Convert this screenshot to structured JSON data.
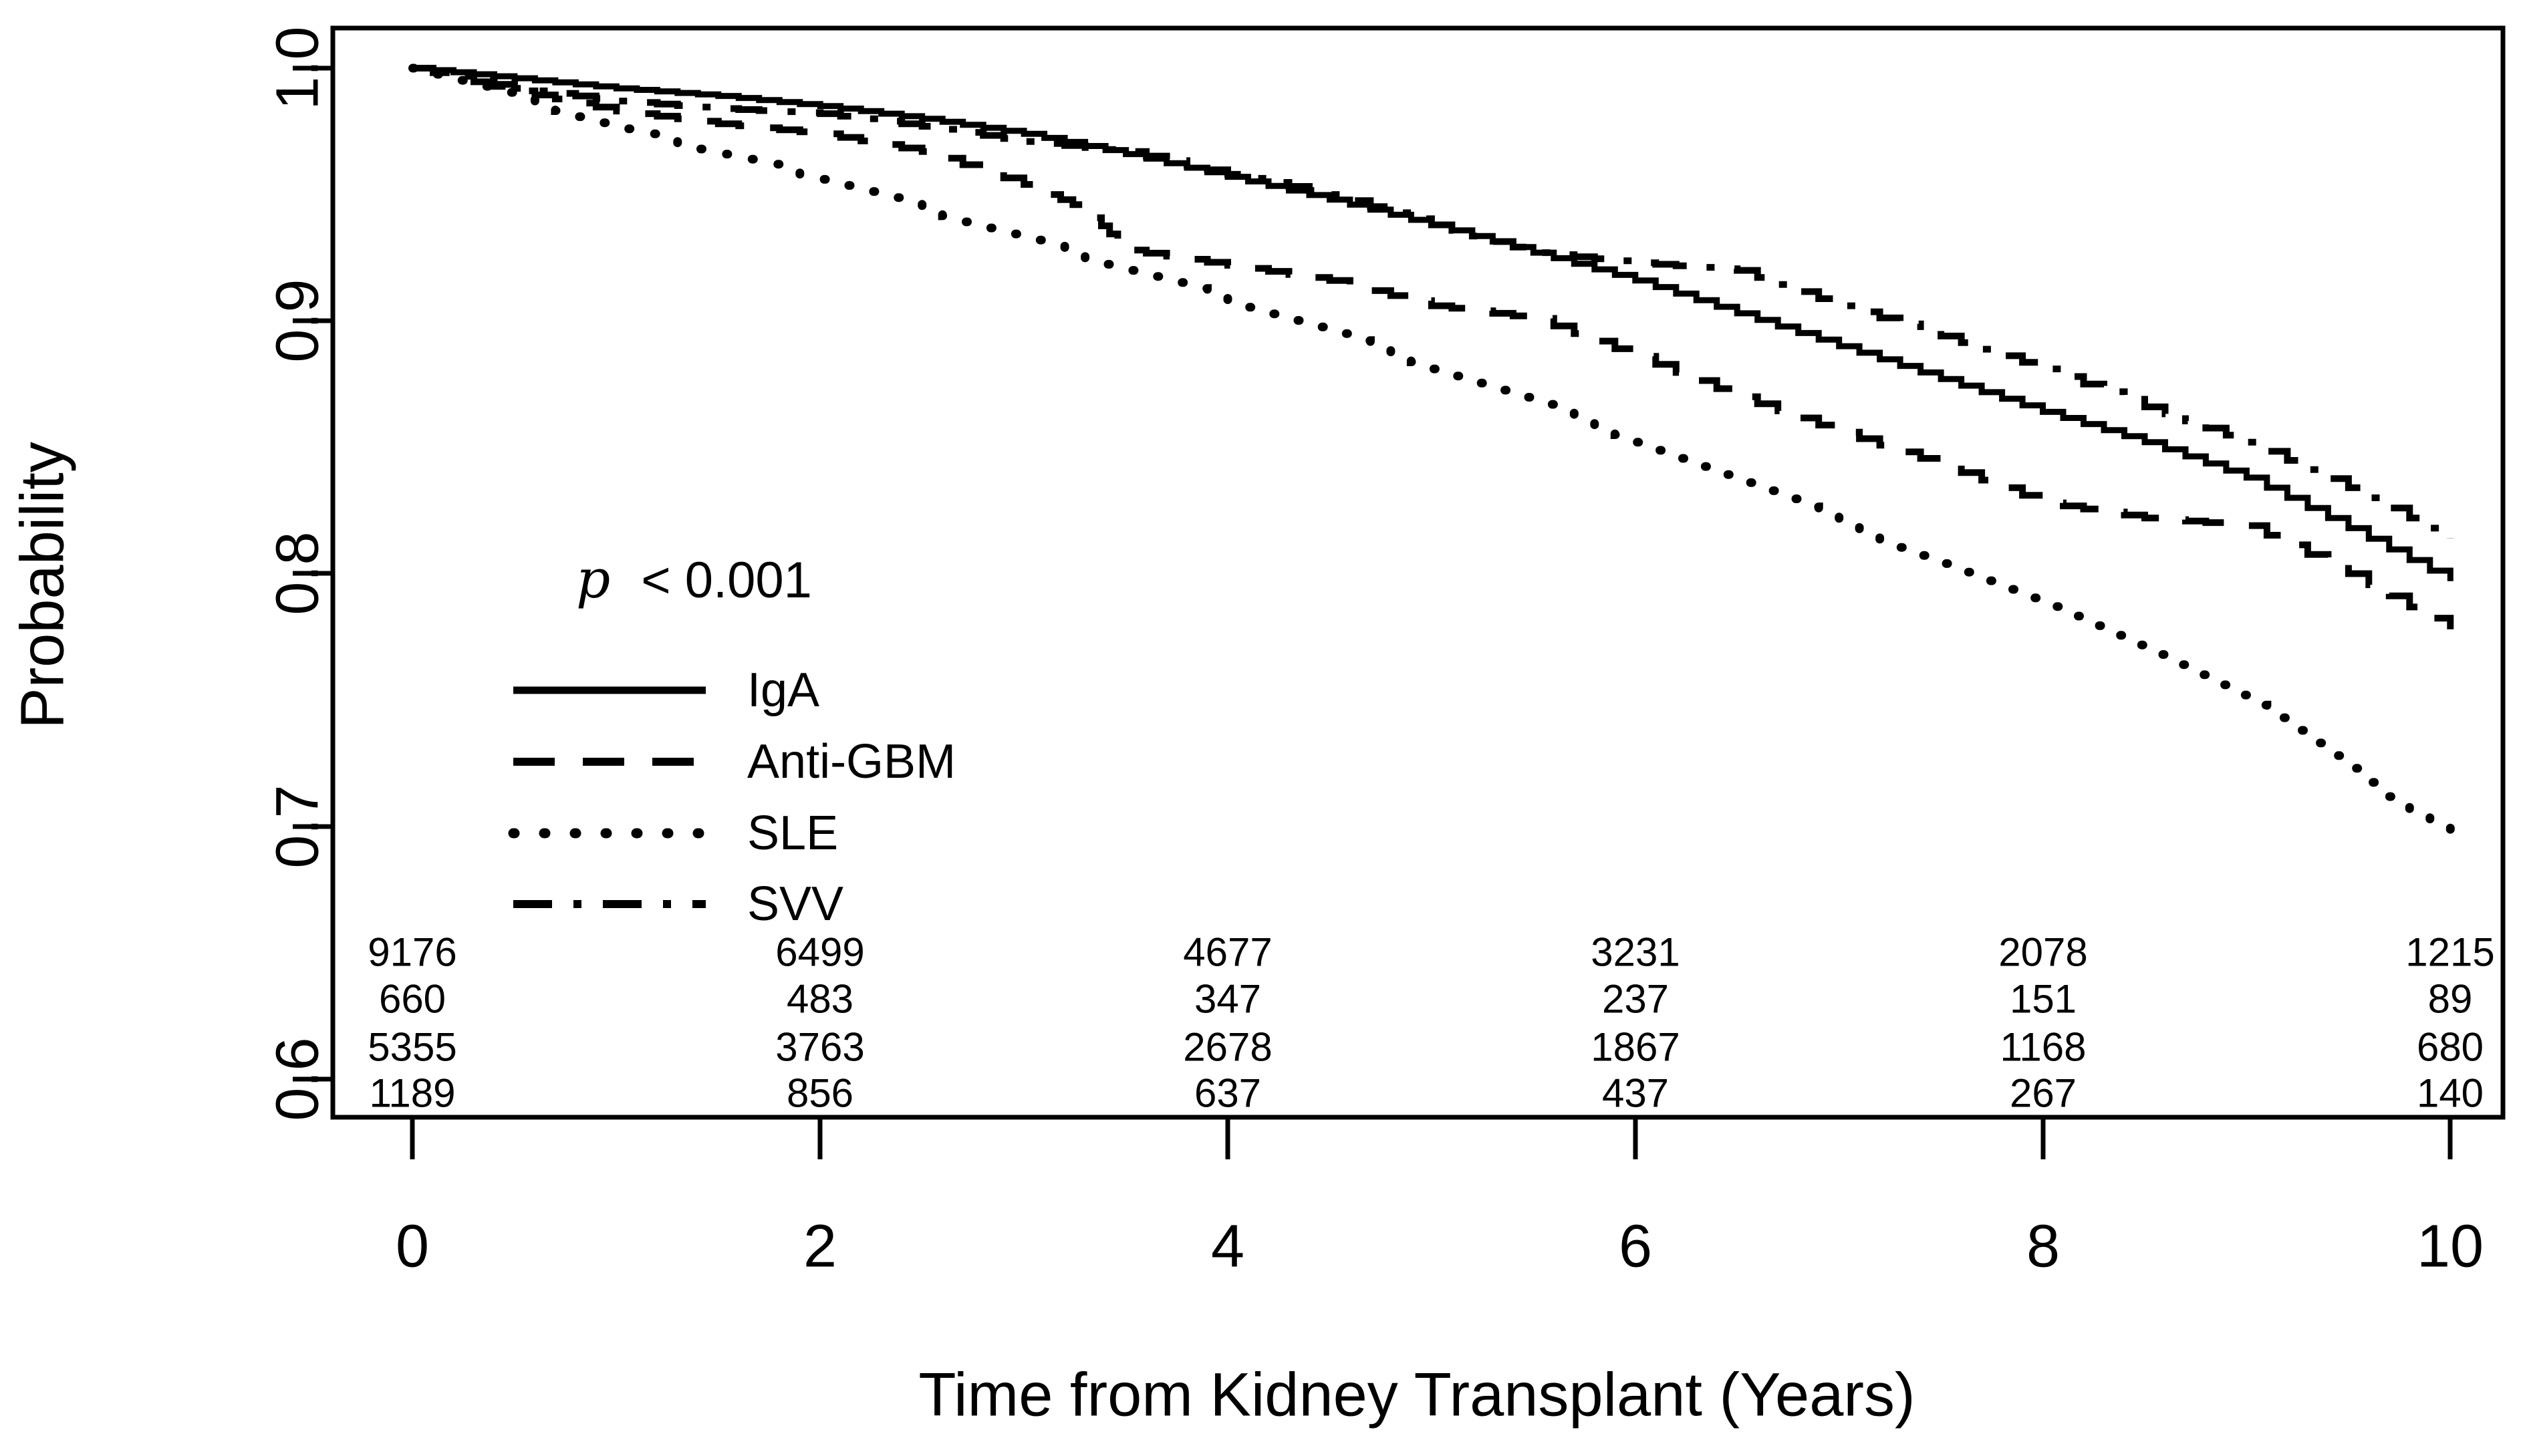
{
  "page": {
    "background": "#ffffff",
    "foreground": "#000000"
  },
  "chart_data": {
    "type": "line",
    "subtype": "kaplan-meier-survival",
    "title": "",
    "xlabel": "Time from Kidney Transplant (Years)",
    "ylabel": "Probability",
    "x_ticks": [
      "0",
      "2",
      "4",
      "6",
      "8",
      "10"
    ],
    "y_ticks": [
      "1.0",
      "0.9",
      "0.8",
      "0.7",
      "0.6"
    ],
    "xlim": [
      0,
      10
    ],
    "ylim": [
      0.585,
      1.0
    ],
    "grid": false,
    "legend_position": "inside-left-middle",
    "annotation": {
      "p_symbol": "p",
      "p_rest": "< 0.001",
      "full_text": "p < 0.001"
    },
    "series": [
      {
        "name": "IgA",
        "line_style": "solid",
        "points": [
          [
            0,
            1.0
          ],
          [
            0.5,
            0.996
          ],
          [
            1,
            0.992
          ],
          [
            1.5,
            0.989
          ],
          [
            2,
            0.985
          ],
          [
            2.5,
            0.98
          ],
          [
            3,
            0.974
          ],
          [
            3.5,
            0.966
          ],
          [
            4,
            0.957
          ],
          [
            4.5,
            0.948
          ],
          [
            5,
            0.938
          ],
          [
            5.5,
            0.927
          ],
          [
            6,
            0.916
          ],
          [
            6.5,
            0.903
          ],
          [
            7,
            0.89
          ],
          [
            7.5,
            0.877
          ],
          [
            8,
            0.864
          ],
          [
            8.5,
            0.852
          ],
          [
            9,
            0.838
          ],
          [
            9.5,
            0.818
          ],
          [
            10,
            0.797
          ]
        ]
      },
      {
        "name": "Anti-GBM",
        "line_style": "dashed",
        "points": [
          [
            0,
            1.0
          ],
          [
            0.5,
            0.991
          ],
          [
            1,
            0.983
          ],
          [
            1.5,
            0.978
          ],
          [
            2,
            0.974
          ],
          [
            2.5,
            0.967
          ],
          [
            3,
            0.954
          ],
          [
            3.3,
            0.944
          ],
          [
            3.5,
            0.928
          ],
          [
            4,
            0.922
          ],
          [
            4.5,
            0.916
          ],
          [
            5,
            0.906
          ],
          [
            5.5,
            0.901
          ],
          [
            6,
            0.886
          ],
          [
            6.5,
            0.87
          ],
          [
            7,
            0.856
          ],
          [
            7.5,
            0.843
          ],
          [
            8,
            0.828
          ],
          [
            8.5,
            0.822
          ],
          [
            9,
            0.819
          ],
          [
            9.5,
            0.8
          ],
          [
            10,
            0.778
          ]
        ]
      },
      {
        "name": "SLE",
        "line_style": "dotted",
        "points": [
          [
            0,
            1.0
          ],
          [
            0.5,
            0.988
          ],
          [
            1,
            0.976
          ],
          [
            1.5,
            0.966
          ],
          [
            2,
            0.956
          ],
          [
            2.5,
            0.944
          ],
          [
            3,
            0.932
          ],
          [
            3.5,
            0.92
          ],
          [
            4,
            0.908
          ],
          [
            4.5,
            0.895
          ],
          [
            5,
            0.881
          ],
          [
            5.5,
            0.867
          ],
          [
            6,
            0.852
          ],
          [
            6.5,
            0.836
          ],
          [
            7,
            0.82
          ],
          [
            7.5,
            0.804
          ],
          [
            8,
            0.787
          ],
          [
            8.5,
            0.768
          ],
          [
            9,
            0.748
          ],
          [
            9.5,
            0.723
          ],
          [
            10,
            0.695
          ]
        ]
      },
      {
        "name": "SVV",
        "line_style": "dashdot",
        "points": [
          [
            0,
            1.0
          ],
          [
            0.5,
            0.992
          ],
          [
            1,
            0.987
          ],
          [
            1.5,
            0.984
          ],
          [
            2,
            0.982
          ],
          [
            2.5,
            0.977
          ],
          [
            3,
            0.971
          ],
          [
            3.5,
            0.967
          ],
          [
            4,
            0.958
          ],
          [
            4.5,
            0.95
          ],
          [
            5,
            0.938
          ],
          [
            5.5,
            0.927
          ],
          [
            6,
            0.923
          ],
          [
            6.5,
            0.92
          ],
          [
            7,
            0.906
          ],
          [
            7.5,
            0.894
          ],
          [
            8,
            0.881
          ],
          [
            8.5,
            0.866
          ],
          [
            9,
            0.852
          ],
          [
            9.5,
            0.834
          ],
          [
            10,
            0.814
          ]
        ]
      }
    ],
    "numbers_at_risk": {
      "times": [
        "0",
        "2",
        "4",
        "6",
        "8",
        "10"
      ],
      "rows": [
        {
          "series": "IgA",
          "values": [
            "9176",
            "6499",
            "4677",
            "3231",
            "2078",
            "1215"
          ]
        },
        {
          "series": "Anti-GBM",
          "values": [
            "660",
            "483",
            "347",
            "237",
            "151",
            "89"
          ]
        },
        {
          "series": "SLE",
          "values": [
            "5355",
            "3763",
            "2678",
            "1867",
            "1168",
            "680"
          ]
        },
        {
          "series": "SVV",
          "values": [
            "1189",
            "856",
            "637",
            "437",
            "267",
            "140"
          ]
        }
      ]
    }
  }
}
